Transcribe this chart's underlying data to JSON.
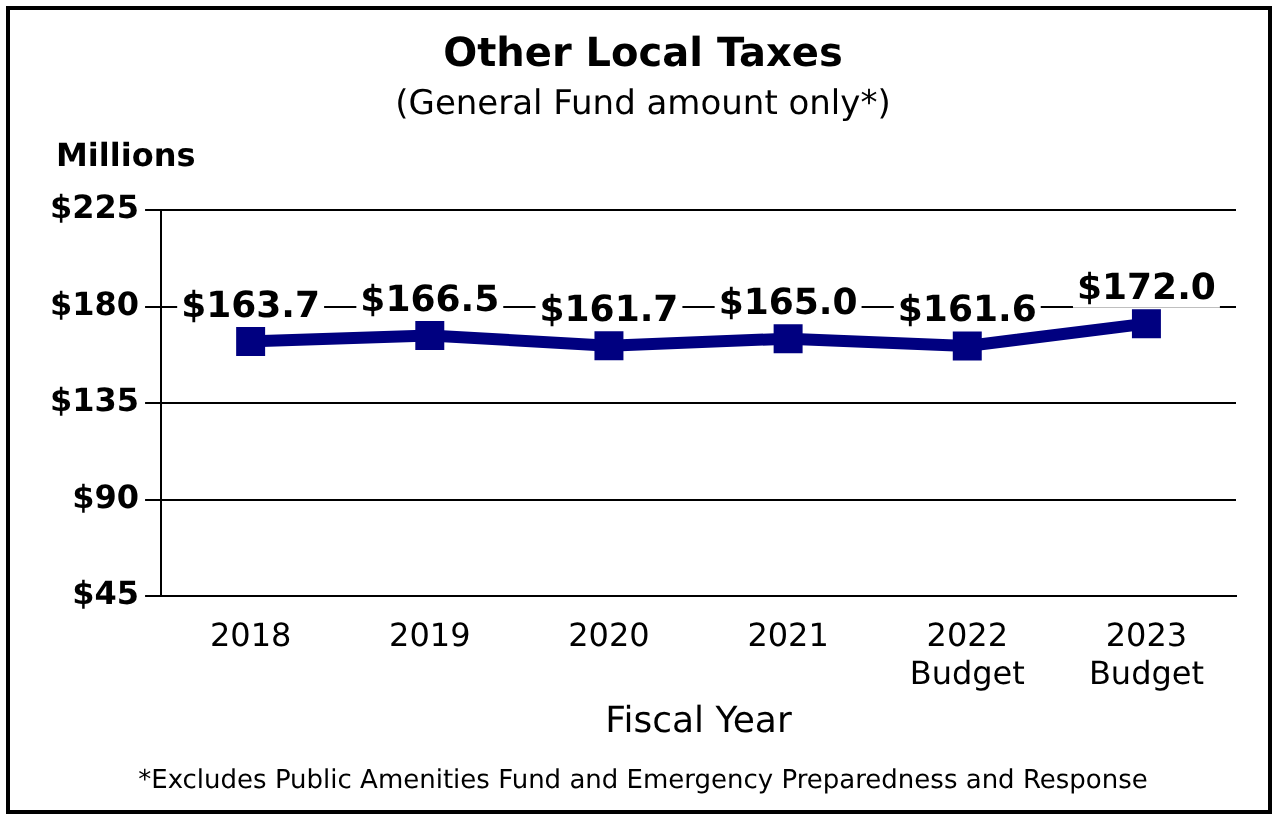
{
  "chart_data": {
    "type": "line",
    "title": "Other Local Taxes",
    "subtitle": "(General Fund amount only*)",
    "ylabel": "Millions",
    "xlabel": "Fiscal Year",
    "categories": [
      "2018",
      "2019",
      "2020",
      "2021",
      "2022 Budget",
      "2023 Budget"
    ],
    "series": [
      {
        "color": "#000080",
        "values": [
          163.7,
          166.5,
          161.7,
          165.0,
          161.6,
          172.0
        ],
        "value_labels": [
          "$163.7",
          "$166.5",
          "$161.7",
          "$165.0",
          "$161.6",
          "$172.0"
        ]
      }
    ],
    "ylim": [
      45,
      225
    ],
    "yticks": [
      {
        "value": 45,
        "label": "$45"
      },
      {
        "value": 90,
        "label": "$90"
      },
      {
        "value": 135,
        "label": "$135"
      },
      {
        "value": 180,
        "label": "$180"
      },
      {
        "value": 225,
        "label": "$225"
      }
    ],
    "grid": "y",
    "legend": false,
    "marker": "square",
    "line_style": "solid",
    "annotations": [
      "*Excludes Public Amenities Fund and Emergency Preparedness and Response"
    ]
  }
}
